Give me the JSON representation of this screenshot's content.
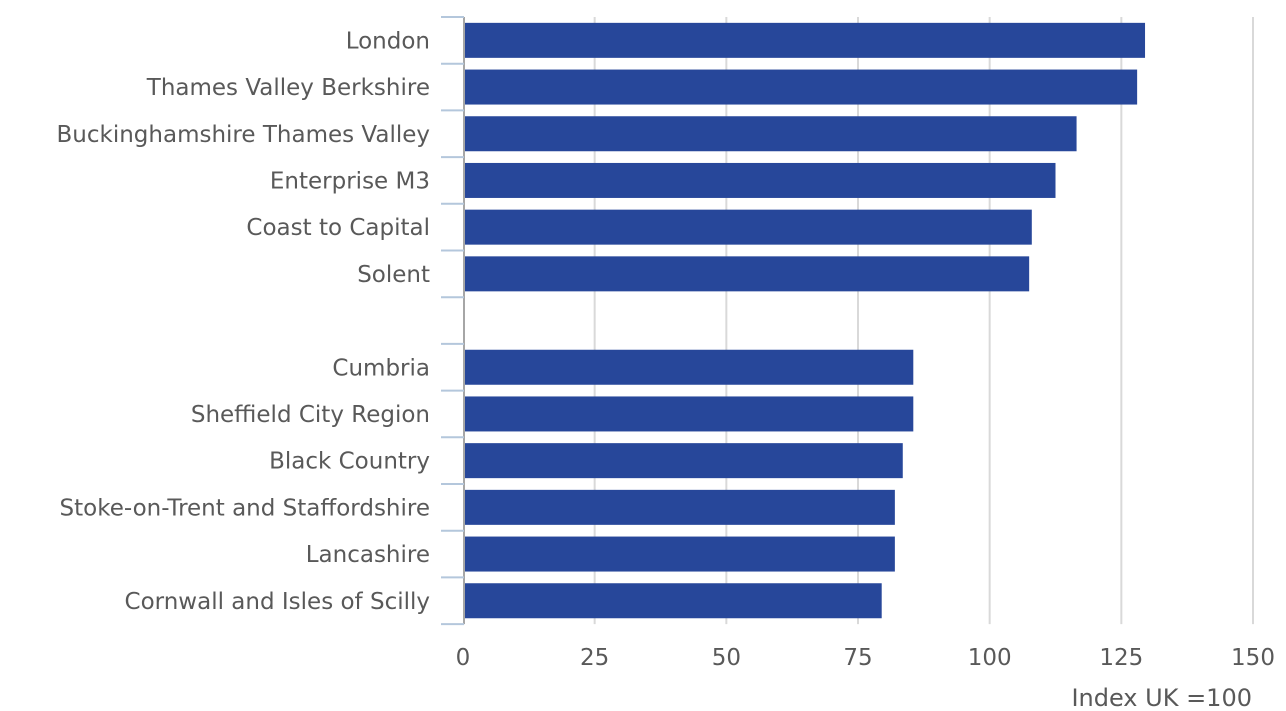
{
  "chart_data": {
    "type": "bar",
    "orientation": "horizontal",
    "categories": [
      "London",
      "Thames Valley Berkshire",
      "Buckinghamshire Thames Valley",
      "Enterprise M3",
      "Coast to Capital",
      "Solent",
      "",
      "Cumbria",
      "Sheffield City Region",
      "Black Country",
      "Stoke-on-Trent and Staffordshire",
      "Lancashire",
      "Cornwall and Isles of Scilly"
    ],
    "values": [
      129.5,
      128,
      116.5,
      112.5,
      108,
      107.5,
      null,
      85.5,
      85.5,
      83.5,
      82,
      82,
      79.5
    ],
    "xlabel": "Index UK =100",
    "ylabel": "",
    "title": "",
    "xlim": [
      0,
      150
    ],
    "xticks": [
      0,
      25,
      50,
      75,
      100,
      125,
      150
    ],
    "bar_color": "#27479a",
    "grid": "vertical",
    "legend": "none"
  }
}
